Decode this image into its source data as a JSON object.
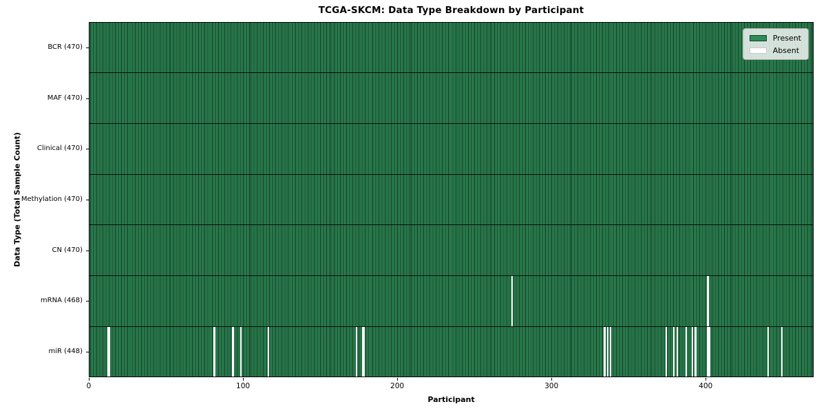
{
  "figure": {
    "title": "TCGA-SKCM: Data Type Breakdown by Participant",
    "xlabel": "Participant",
    "ylabel": "Data Type (Total Sample Count)"
  },
  "colors": {
    "present": "#2e8b57",
    "present_edge": "#10301e",
    "absent": "#ffffff",
    "row_divider": "#0c0c0c",
    "frame": "#000000"
  },
  "chart_data": {
    "type": "heatmap",
    "title": "TCGA-SKCM: Data Type Breakdown by Participant",
    "xlabel": "Participant",
    "ylabel": "Data Type (Total Sample Count)",
    "x_range": [
      0,
      470
    ],
    "x_ticks": [
      0,
      100,
      200,
      300,
      400
    ],
    "grid": false,
    "legend_position": "upper right",
    "legend": [
      {
        "label": "Present",
        "color": "#2e8b57"
      },
      {
        "label": "Absent",
        "color": "#ffffff"
      }
    ],
    "cell_values": {
      "present": 1,
      "absent": 0
    },
    "total_participants": 470,
    "rows": [
      {
        "label": "BCR (470)",
        "data_type": "BCR",
        "total_samples": 470,
        "absent_participants": []
      },
      {
        "label": "MAF (470)",
        "data_type": "MAF",
        "total_samples": 470,
        "absent_participants": []
      },
      {
        "label": "Clinical (470)",
        "data_type": "Clinical",
        "total_samples": 470,
        "absent_participants": []
      },
      {
        "label": "Methylation (470)",
        "data_type": "Methylation",
        "total_samples": 470,
        "absent_participants": []
      },
      {
        "label": "CN (470)",
        "data_type": "CN",
        "total_samples": 470,
        "absent_participants": []
      },
      {
        "label": "mRNA (468)",
        "data_type": "mRNA",
        "total_samples": 468,
        "absent_participants": [
          274,
          401
        ]
      },
      {
        "label": "miR (448)",
        "data_type": "miR",
        "total_samples": 448,
        "absent_participants": [
          12,
          13,
          81,
          93,
          98,
          116,
          173,
          177,
          178,
          334,
          336,
          338,
          374,
          379,
          381,
          387,
          391,
          393,
          401,
          402,
          440,
          449
        ]
      }
    ]
  }
}
